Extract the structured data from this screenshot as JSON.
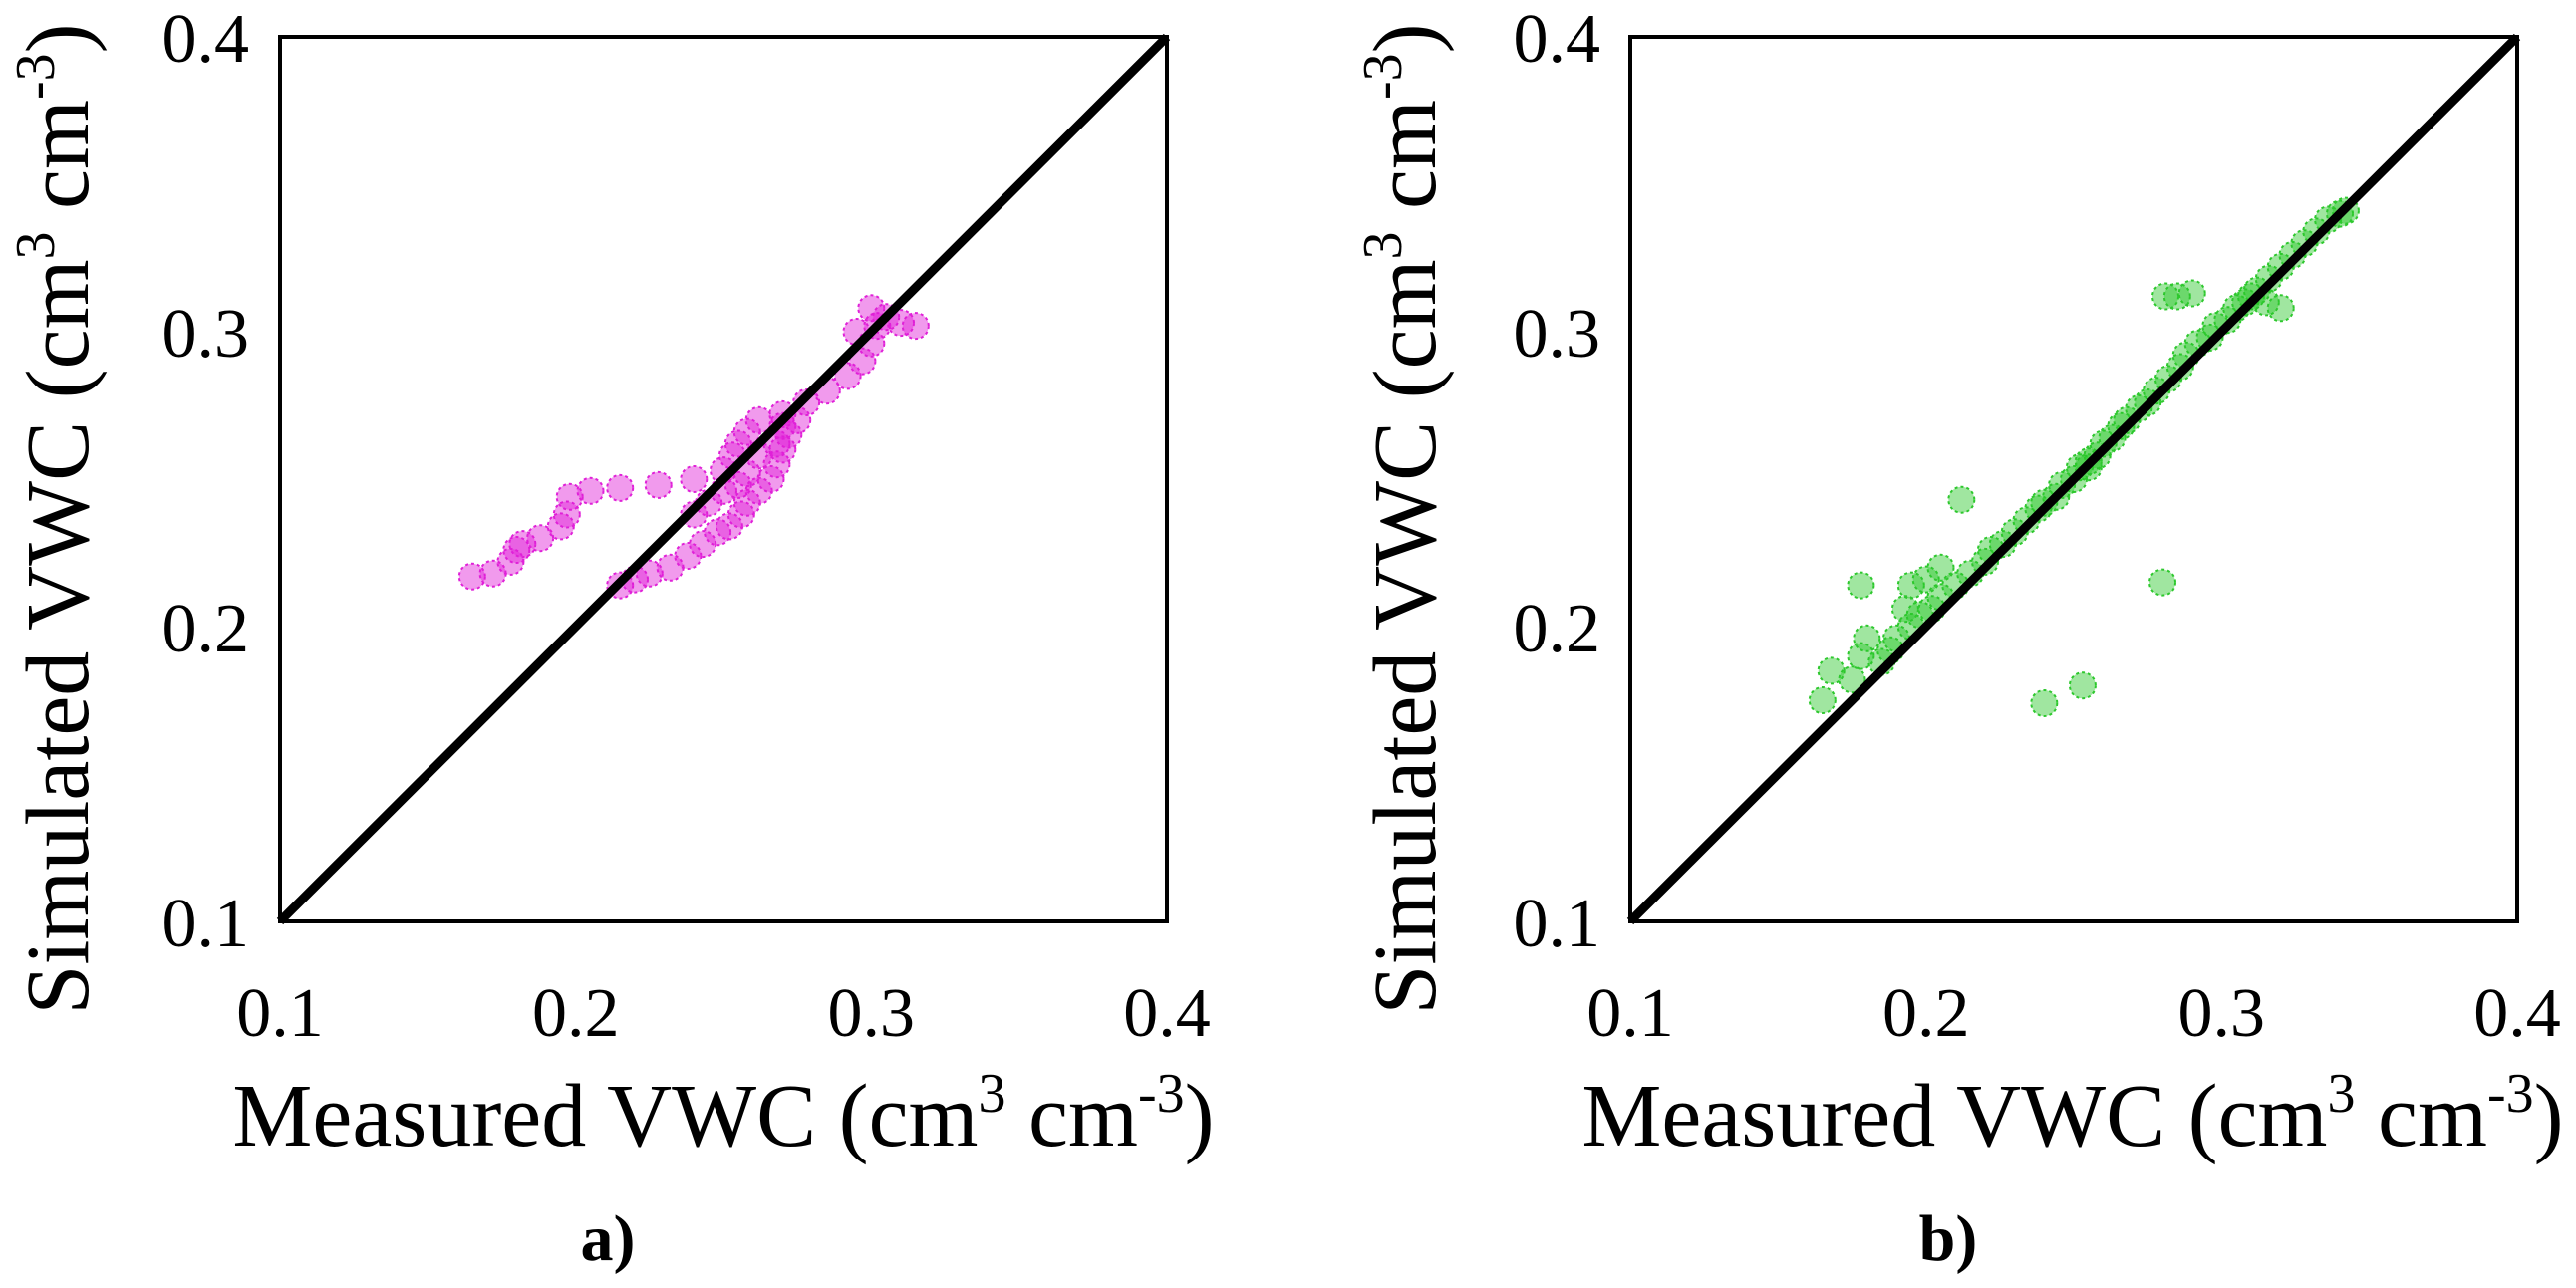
{
  "chart_data": [
    {
      "type": "scatter",
      "panel_label": "a)",
      "xlabel": {
        "text": "Measured VWC (cm",
        "sup1": "3",
        "mid": " cm",
        "sup2": "-3",
        "end": ")"
      },
      "ylabel": {
        "text": "Simulated VWC (cm",
        "sup1": "3",
        "mid": " cm",
        "sup2": "-3",
        "end": ")"
      },
      "xlim": [
        0.1,
        0.4
      ],
      "ylim": [
        0.1,
        0.4
      ],
      "xticks": [
        "0.1",
        "0.2",
        "0.3",
        "0.4"
      ],
      "yticks": [
        "0.1",
        "0.2",
        "0.3",
        "0.4"
      ],
      "reference_line": "1:1",
      "marker_color": "#e020d8",
      "points": [
        [
          0.165,
          0.217
        ],
        [
          0.172,
          0.218
        ],
        [
          0.178,
          0.222
        ],
        [
          0.18,
          0.226
        ],
        [
          0.182,
          0.228
        ],
        [
          0.188,
          0.23
        ],
        [
          0.195,
          0.234
        ],
        [
          0.197,
          0.238
        ],
        [
          0.198,
          0.244
        ],
        [
          0.205,
          0.246
        ],
        [
          0.215,
          0.247
        ],
        [
          0.228,
          0.248
        ],
        [
          0.24,
          0.25
        ],
        [
          0.25,
          0.253
        ],
        [
          0.253,
          0.258
        ],
        [
          0.255,
          0.262
        ],
        [
          0.258,
          0.266
        ],
        [
          0.262,
          0.27
        ],
        [
          0.27,
          0.272
        ],
        [
          0.278,
          0.276
        ],
        [
          0.285,
          0.28
        ],
        [
          0.292,
          0.285
        ],
        [
          0.297,
          0.29
        ],
        [
          0.3,
          0.296
        ],
        [
          0.302,
          0.302
        ],
        [
          0.305,
          0.305
        ],
        [
          0.3,
          0.308
        ],
        [
          0.295,
          0.3
        ],
        [
          0.215,
          0.214
        ],
        [
          0.22,
          0.216
        ],
        [
          0.225,
          0.218
        ],
        [
          0.232,
          0.22
        ],
        [
          0.238,
          0.224
        ],
        [
          0.243,
          0.228
        ],
        [
          0.248,
          0.232
        ],
        [
          0.252,
          0.234
        ],
        [
          0.256,
          0.238
        ],
        [
          0.258,
          0.242
        ],
        [
          0.262,
          0.246
        ],
        [
          0.266,
          0.25
        ],
        [
          0.268,
          0.255
        ],
        [
          0.27,
          0.26
        ],
        [
          0.272,
          0.265
        ],
        [
          0.268,
          0.262
        ],
        [
          0.262,
          0.258
        ],
        [
          0.258,
          0.252
        ],
        [
          0.255,
          0.248
        ],
        [
          0.25,
          0.246
        ],
        [
          0.245,
          0.242
        ],
        [
          0.24,
          0.238
        ],
        [
          0.31,
          0.303
        ],
        [
          0.315,
          0.302
        ],
        [
          0.275,
          0.27
        ],
        [
          0.27,
          0.268
        ]
      ]
    },
    {
      "type": "scatter",
      "panel_label": "b)",
      "xlabel": {
        "text": "Measured VWC (cm",
        "sup1": "3",
        "mid": " cm",
        "sup2": "-3",
        "end": ")"
      },
      "ylabel": {
        "text": "Simulated VWC (cm",
        "sup1": "3",
        "mid": " cm",
        "sup2": "-3",
        "end": ")"
      },
      "xlim": [
        0.1,
        0.4
      ],
      "ylim": [
        0.1,
        0.4
      ],
      "xticks": [
        "0.1",
        "0.2",
        "0.3",
        "0.4"
      ],
      "yticks": [
        "0.1",
        "0.2",
        "0.3",
        "0.4"
      ],
      "reference_line": "1:1",
      "marker_color": "#2dc82d",
      "points": [
        [
          0.165,
          0.175
        ],
        [
          0.168,
          0.185
        ],
        [
          0.175,
          0.182
        ],
        [
          0.178,
          0.19
        ],
        [
          0.18,
          0.196
        ],
        [
          0.178,
          0.214
        ],
        [
          0.185,
          0.188
        ],
        [
          0.188,
          0.192
        ],
        [
          0.19,
          0.196
        ],
        [
          0.195,
          0.2
        ],
        [
          0.195,
          0.214
        ],
        [
          0.198,
          0.204
        ],
        [
          0.202,
          0.206
        ],
        [
          0.205,
          0.21
        ],
        [
          0.21,
          0.214
        ],
        [
          0.212,
          0.243
        ],
        [
          0.215,
          0.218
        ],
        [
          0.22,
          0.222
        ],
        [
          0.222,
          0.226
        ],
        [
          0.226,
          0.228
        ],
        [
          0.23,
          0.232
        ],
        [
          0.234,
          0.236
        ],
        [
          0.238,
          0.24
        ],
        [
          0.24,
          0.242
        ],
        [
          0.244,
          0.244
        ],
        [
          0.246,
          0.248
        ],
        [
          0.25,
          0.25
        ],
        [
          0.252,
          0.254
        ],
        [
          0.255,
          0.256
        ],
        [
          0.258,
          0.258
        ],
        [
          0.26,
          0.262
        ],
        [
          0.263,
          0.264
        ],
        [
          0.266,
          0.268
        ],
        [
          0.268,
          0.27
        ],
        [
          0.272,
          0.274
        ],
        [
          0.275,
          0.276
        ],
        [
          0.278,
          0.28
        ],
        [
          0.282,
          0.284
        ],
        [
          0.286,
          0.288
        ],
        [
          0.288,
          0.292
        ],
        [
          0.292,
          0.296
        ],
        [
          0.296,
          0.298
        ],
        [
          0.298,
          0.302
        ],
        [
          0.302,
          0.304
        ],
        [
          0.305,
          0.308
        ],
        [
          0.308,
          0.31
        ],
        [
          0.312,
          0.314
        ],
        [
          0.316,
          0.318
        ],
        [
          0.32,
          0.322
        ],
        [
          0.324,
          0.326
        ],
        [
          0.328,
          0.33
        ],
        [
          0.332,
          0.334
        ],
        [
          0.336,
          0.338
        ],
        [
          0.34,
          0.34
        ],
        [
          0.342,
          0.341
        ],
        [
          0.285,
          0.312
        ],
        [
          0.29,
          0.313
        ],
        [
          0.281,
          0.312
        ],
        [
          0.31,
          0.312
        ],
        [
          0.315,
          0.31
        ],
        [
          0.32,
          0.308
        ],
        [
          0.28,
          0.215
        ],
        [
          0.253,
          0.18
        ],
        [
          0.24,
          0.174
        ],
        [
          0.255,
          0.254
        ],
        [
          0.205,
          0.22
        ],
        [
          0.2,
          0.216
        ],
        [
          0.193,
          0.206
        ]
      ]
    }
  ]
}
